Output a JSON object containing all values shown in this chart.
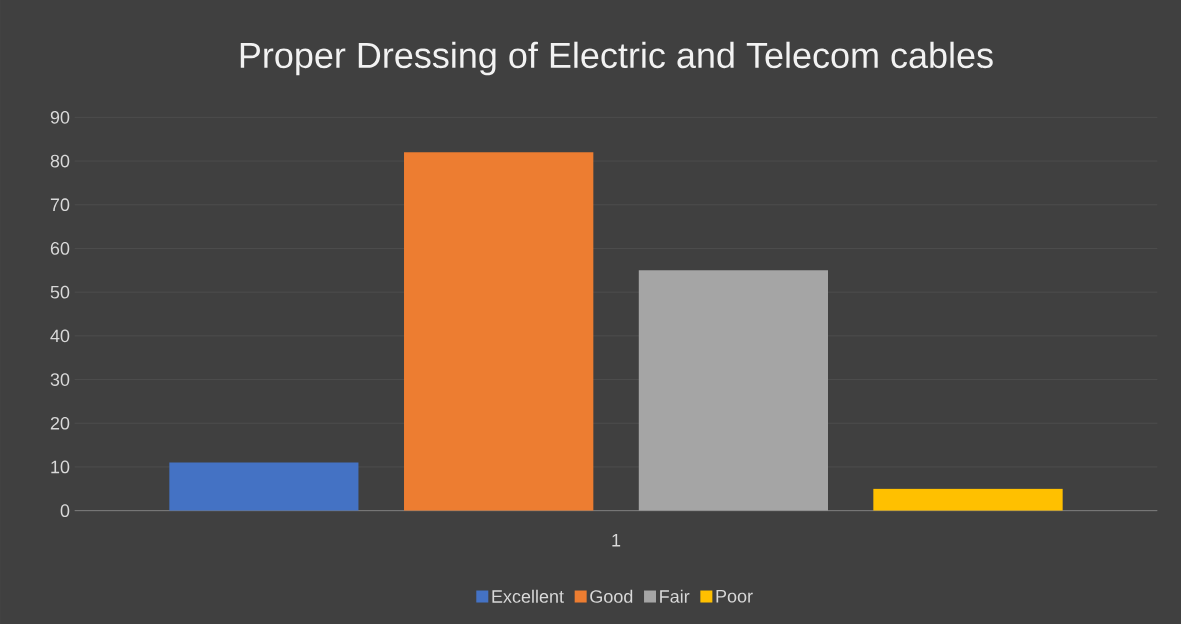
{
  "chart_data": {
    "type": "bar",
    "title": "Proper Dressing of Electric and Telecom cables",
    "categories": [
      "1"
    ],
    "series": [
      {
        "name": "Excellent",
        "color": "#4472c4",
        "values": [
          11
        ]
      },
      {
        "name": "Good",
        "color": "#ed7d31",
        "values": [
          82
        ]
      },
      {
        "name": "Fair",
        "color": "#a5a5a5",
        "values": [
          55
        ]
      },
      {
        "name": "Poor",
        "color": "#ffc000",
        "values": [
          5
        ]
      }
    ],
    "ylim": [
      0,
      90
    ],
    "yticks": [
      0,
      10,
      20,
      30,
      40,
      50,
      60,
      70,
      80,
      90
    ],
    "grid": "y",
    "legend": "bottom"
  }
}
